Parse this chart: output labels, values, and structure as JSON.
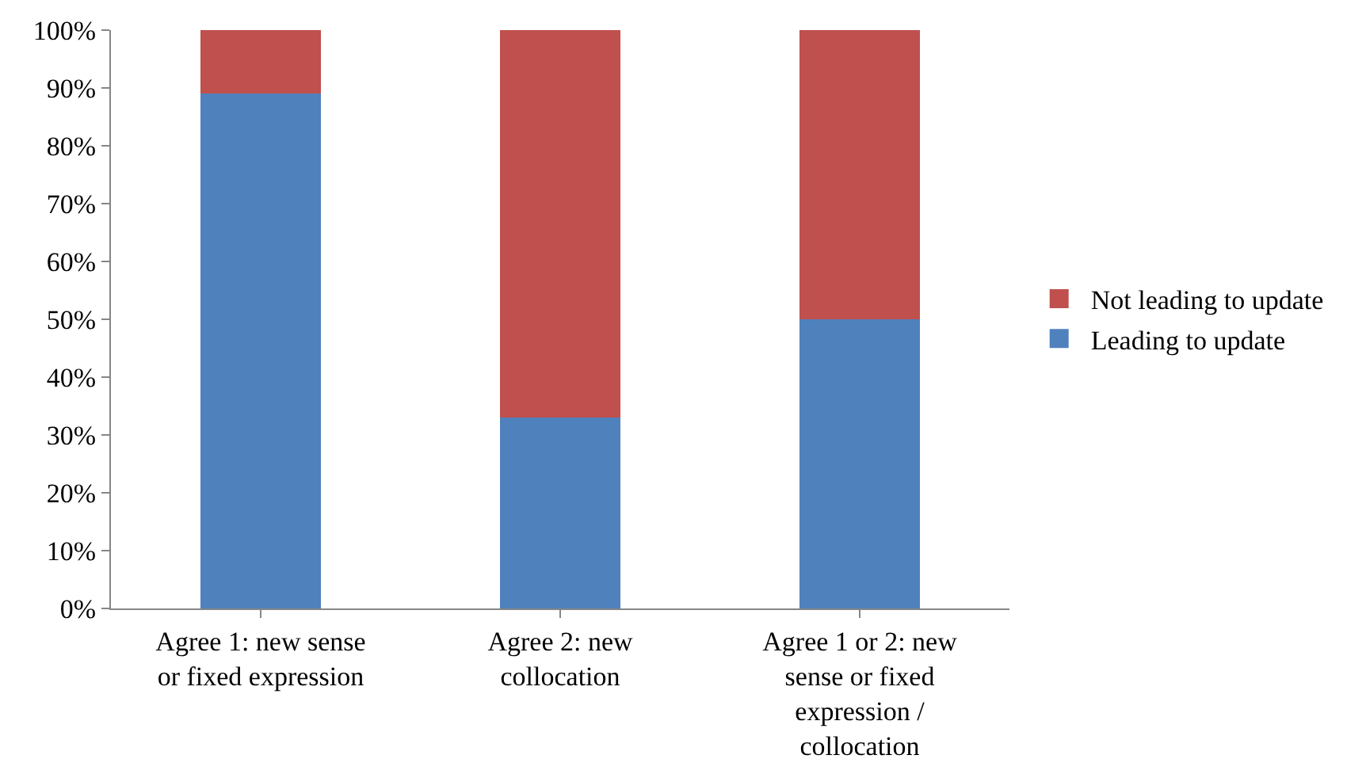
{
  "chart_data": {
    "type": "bar",
    "stacked": true,
    "categories": [
      "Agree 1: new sense or fixed expression",
      "Agree 2: new collocation",
      "Agree 1 or 2: new sense or fixed expression / collocation"
    ],
    "series": [
      {
        "name": "Leading to update",
        "color": "#4f81bd",
        "values": [
          89,
          33,
          50
        ]
      },
      {
        "name": "Not leading to update",
        "color": "#c0504d",
        "values": [
          11,
          67,
          50
        ]
      }
    ],
    "ylim": [
      0,
      100
    ],
    "yticks": [
      {
        "value": 0,
        "label": "0%"
      },
      {
        "value": 10,
        "label": "10%"
      },
      {
        "value": 20,
        "label": "20%"
      },
      {
        "value": 30,
        "label": "30%"
      },
      {
        "value": 40,
        "label": "40%"
      },
      {
        "value": 50,
        "label": "50%"
      },
      {
        "value": 60,
        "label": "60%"
      },
      {
        "value": 70,
        "label": "70%"
      },
      {
        "value": 80,
        "label": "80%"
      },
      {
        "value": 90,
        "label": "90%"
      },
      {
        "value": 100,
        "label": "100%"
      }
    ],
    "grid": false,
    "legend": "right"
  }
}
